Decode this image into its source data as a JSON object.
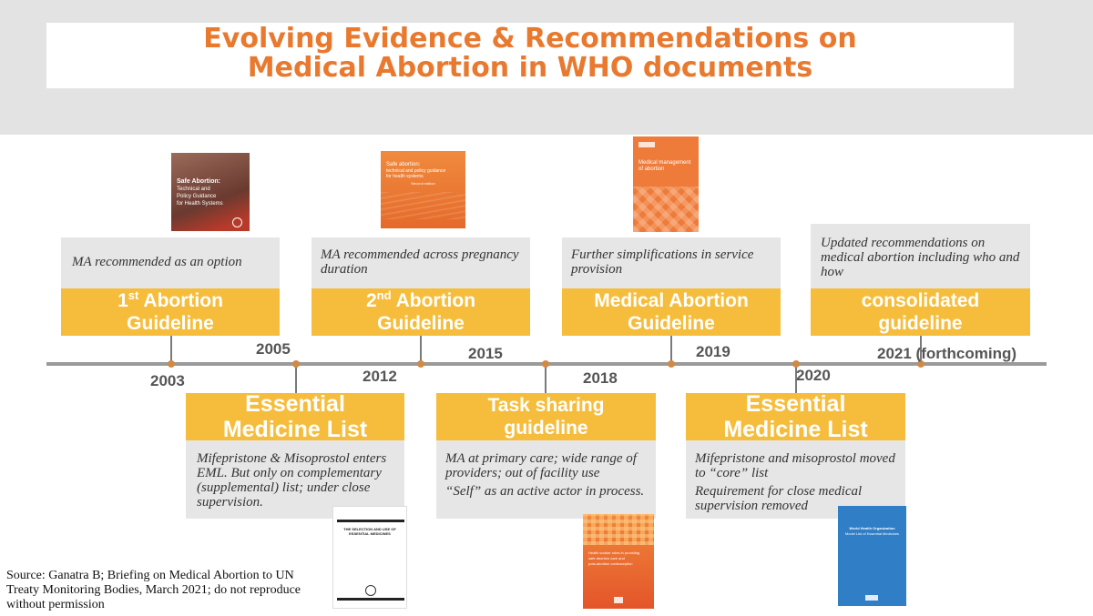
{
  "title": {
    "line1": "Evolving Evidence & Recommendations on",
    "line2": "Medical Abortion in WHO documents"
  },
  "top_items": [
    {
      "note": "MA recommended as an option",
      "heading_line1_num": "1",
      "heading_line1_sup": "st",
      "heading_line1_rest": " Abortion",
      "heading_line2": "Guideline"
    },
    {
      "note": "MA recommended across pregnancy duration",
      "heading_line1_num": "2",
      "heading_line1_sup": "nd",
      "heading_line1_rest": " Abortion",
      "heading_line2": "Guideline"
    },
    {
      "note": "Further simplifications in service provision",
      "heading_line1": "Medical Abortion",
      "heading_line2": "Guideline"
    },
    {
      "note": "Updated recommendations on medical abortion including who and how",
      "heading_line1": "consolidated",
      "heading_line2": "guideline"
    }
  ],
  "bottom_items": [
    {
      "heading_line1": "Essential",
      "heading_line2": "Medicine List",
      "note1": "Mifepristone & Misoprostol enters EML. But only on complementary (supplemental) list; under close supervision.",
      "note2": ""
    },
    {
      "heading_line1": "Task sharing",
      "heading_line2": "guideline",
      "note1": "MA at primary care; wide range of providers; out of facility use",
      "note2": "“Self” as an active actor in process."
    },
    {
      "heading_line1": "Essential",
      "heading_line2": "Medicine List",
      "note1": "Mifepristone and misoprostol moved to “core” list",
      "note2": "Requirement for close medical supervision removed"
    }
  ],
  "years": {
    "y2003": "2003",
    "y2005": "2005",
    "y2012": "2012",
    "y2015": "2015",
    "y2018": "2018",
    "y2019": "2019",
    "y2020": "2020",
    "y2021": "2021 (forthcoming)"
  },
  "covers": {
    "c2003": {
      "line1": "Safe Abortion:",
      "line2": "Technical and",
      "line3": "Policy Guidance",
      "line4": "for Health Systems"
    },
    "c2012": {
      "line1": "Safe abortion:",
      "line2": "technical and policy guidance",
      "line3": "for health systems",
      "line4": "Second edition"
    },
    "c2018": {
      "line1": "Medical management",
      "line2": "of abortion"
    },
    "c2005": {
      "line1": "THE SELECTION AND USE OF",
      "line2": "ESSENTIAL MEDICINES"
    },
    "c2015": {
      "line1": "Health worker roles in providing",
      "line2": "safe abortion care and",
      "line3": "post-abortion contraception"
    },
    "c2020": {
      "line1": "World Health Organization",
      "line2": "Model List of Essential Medicines"
    }
  },
  "source": "Source: Ganatra B; Briefing on Medical Abortion to UN Treaty Monitoring Bodies, March 2021;  do not reproduce without permission",
  "colors": {
    "accent_orange": "#e8792f",
    "box_yellow": "#f6bd3c",
    "note_gray": "#e6e6e6",
    "axis_gray": "#9a9a9a",
    "eml_blue": "#2f7ec6"
  }
}
